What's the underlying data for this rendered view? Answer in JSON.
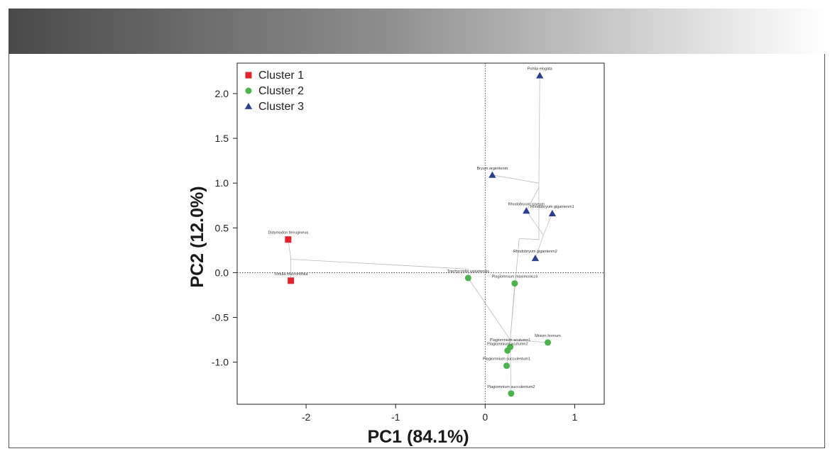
{
  "chart_data": {
    "type": "scatter",
    "title": "",
    "xlabel": "PC1 (84.1%)",
    "ylabel": "PC2 (12.0%)",
    "xlim": [
      -2.77,
      1.33
    ],
    "ylim": [
      -1.47,
      2.34
    ],
    "x_ticks": [
      -2,
      -1,
      0,
      1
    ],
    "y_ticks": [
      -1.0,
      -0.5,
      0.0,
      0.5,
      1.0,
      1.5,
      2.0
    ],
    "y_tick_labels": [
      "-1.0",
      "-0.5",
      "0.0",
      "0.5",
      "1.0",
      "1.5",
      "2.0"
    ],
    "x_tick_labels": [
      "-2",
      "-1",
      "0",
      "1"
    ],
    "grid": false,
    "reference_lines": {
      "x": 0,
      "y": 0,
      "style": "dotted"
    },
    "legend_position": "top-left",
    "series": [
      {
        "name": "Cluster 1",
        "marker": "square",
        "color": "#e0232a",
        "points": [
          {
            "label": "Didymodon ferrugineus",
            "x": -2.2,
            "y": 0.37
          },
          {
            "label": "Tortula mucronifolia",
            "x": -2.17,
            "y": -0.09
          }
        ]
      },
      {
        "name": "Cluster 2",
        "marker": "circle",
        "color": "#4ab44a",
        "points": [
          {
            "label": "Trachycystis ussuriensis",
            "x": -0.19,
            "y": -0.06
          },
          {
            "label": "Plagiomnium maximoviczii",
            "x": 0.33,
            "y": -0.12
          },
          {
            "label": "Mnium hornum",
            "x": 0.7,
            "y": -0.78
          },
          {
            "label": "Plagiomnium acutumn1",
            "x": 0.28,
            "y": -0.83
          },
          {
            "label": "Plagiomnium acutumn2",
            "x": 0.25,
            "y": -0.87
          },
          {
            "label": "Plagiomnium succulentum1",
            "x": 0.24,
            "y": -1.04
          },
          {
            "label": "Plagiomnium succulentum2",
            "x": 0.29,
            "y": -1.35
          }
        ]
      },
      {
        "name": "Cluster 3",
        "marker": "triangle",
        "color": "#2c3f8f",
        "points": [
          {
            "label": "Pohlia elogata",
            "x": 0.61,
            "y": 2.2
          },
          {
            "label": "Bryum argentenm",
            "x": 0.08,
            "y": 1.09
          },
          {
            "label": "Rhodobryum roseum",
            "x": 0.46,
            "y": 0.69
          },
          {
            "label": "Rhodobryum gigantenm1",
            "x": 0.75,
            "y": 0.66
          },
          {
            "label": "Rhodobryum gigantenm2",
            "x": 0.56,
            "y": 0.16
          }
        ]
      }
    ],
    "tree_edges": [
      [
        [
          -2.2,
          0.37
        ],
        [
          -2.17,
          0.15
        ]
      ],
      [
        [
          -2.17,
          -0.09
        ],
        [
          -2.17,
          0.15
        ]
      ],
      [
        [
          -2.17,
          0.15
        ],
        [
          -0.19,
          0.04
        ]
      ],
      [
        [
          -0.19,
          -0.06
        ],
        [
          -0.19,
          0.04
        ]
      ],
      [
        [
          -0.19,
          -0.06
        ],
        [
          0.28,
          -0.75
        ]
      ],
      [
        [
          0.33,
          -0.12
        ],
        [
          0.28,
          -0.75
        ]
      ],
      [
        [
          0.7,
          -0.78
        ],
        [
          0.28,
          -0.75
        ]
      ],
      [
        [
          0.28,
          -0.83
        ],
        [
          0.28,
          -0.75
        ]
      ],
      [
        [
          0.25,
          -0.87
        ],
        [
          0.28,
          -0.75
        ]
      ],
      [
        [
          0.24,
          -1.04
        ],
        [
          0.28,
          -0.75
        ]
      ],
      [
        [
          0.29,
          -1.35
        ],
        [
          0.28,
          -0.75
        ]
      ],
      [
        [
          0.28,
          -0.75
        ],
        [
          0.38,
          0.38
        ]
      ],
      [
        [
          0.38,
          0.38
        ],
        [
          0.6,
          0.37
        ]
      ],
      [
        [
          0.61,
          2.2
        ],
        [
          0.6,
          1.0
        ]
      ],
      [
        [
          0.08,
          1.09
        ],
        [
          0.6,
          1.0
        ]
      ],
      [
        [
          0.6,
          1.0
        ],
        [
          0.6,
          0.37
        ]
      ],
      [
        [
          0.46,
          0.69
        ],
        [
          0.6,
          0.95
        ]
      ],
      [
        [
          0.46,
          0.69
        ],
        [
          0.65,
          0.42
        ]
      ],
      [
        [
          0.75,
          0.66
        ],
        [
          0.65,
          0.42
        ]
      ],
      [
        [
          0.56,
          0.16
        ],
        [
          0.65,
          0.42
        ]
      ]
    ]
  }
}
